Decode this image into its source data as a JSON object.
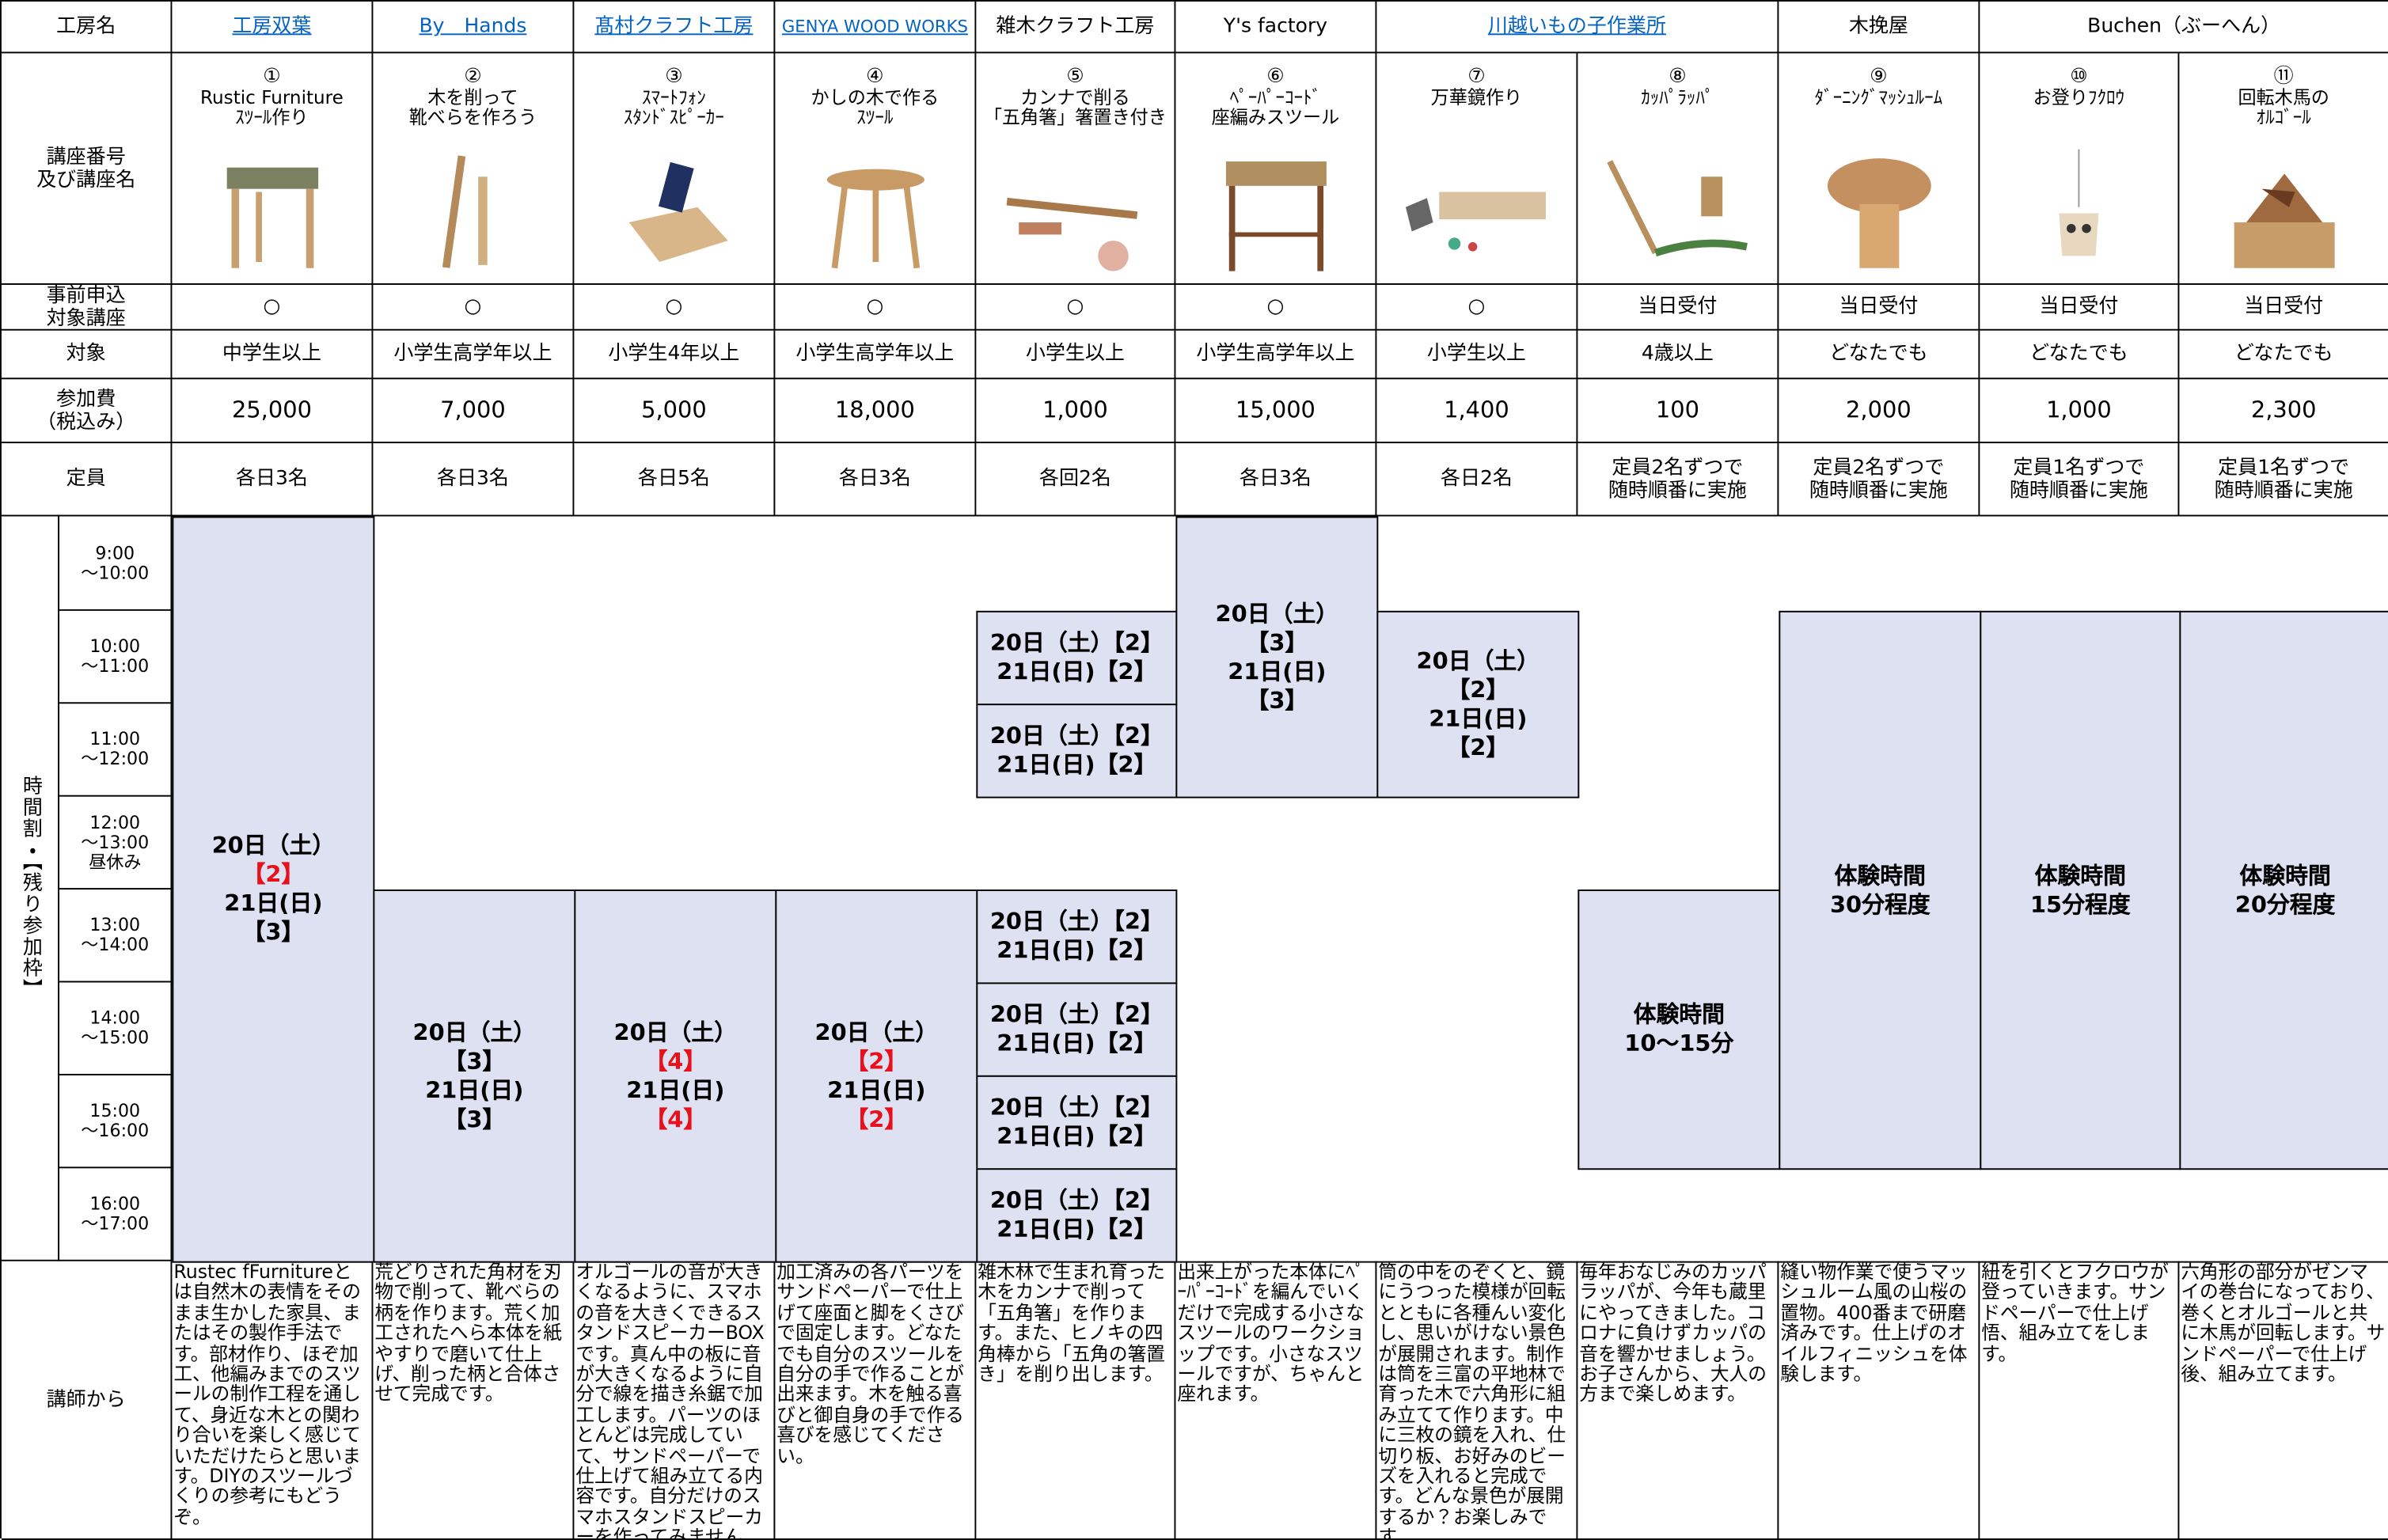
{
  "row_labels": {
    "studio": "工房名",
    "course": "講座番号\n及び講座名",
    "preregistration": "事前申込\n対象講座",
    "target": "対象",
    "fee": "参加費\n（税込み）",
    "capacity": "定員",
    "schedule": "時間割・【残り参加枠】",
    "message": "講師から"
  },
  "studios": [
    {
      "name": "工房双葉",
      "link": true,
      "courses": 1
    },
    {
      "name": "By　Hands",
      "link": true,
      "courses": 1
    },
    {
      "name": "髙村クラフト工房",
      "link": true,
      "courses": 1
    },
    {
      "name": "GENYA WOOD WORKS",
      "link": true,
      "courses": 1
    },
    {
      "name": "雑木クラフト工房",
      "link": false,
      "courses": 1
    },
    {
      "name": "Y's factory",
      "link": false,
      "courses": 1
    },
    {
      "name": "川越いもの子作業所",
      "link": true,
      "courses": 2
    },
    {
      "name": "木挽屋",
      "link": false,
      "courses": 1
    },
    {
      "name": "Buchen（ぶーへん）",
      "link": false,
      "courses": 2
    }
  ],
  "time_slots": [
    "9:00\n～10:00",
    "10:00\n～11:00",
    "11:00\n～12:00",
    "12:00\n～13:00\n昼休み",
    "13:00\n～14:00",
    "14:00\n～15:00",
    "15:00\n～16:00",
    "16:00\n～17:00"
  ],
  "courses": [
    {
      "number": "①",
      "name": "Rustic Furniture\nｽﾂｰﾙ作り",
      "preregistration": "○",
      "target": "中学生以上",
      "fee": "25,000",
      "capacity": "各日3名",
      "schedule": [
        [
          "20日（土）",
          {
            "text": "【2】",
            "color": "#e8101a"
          },
          "21日(日)",
          "【3】"
        ]
      ],
      "message": "Rustec fFurnitureとは自然木の表情をそのまま生かした家具、またはその製作手法です。部材作り、ほぞ加工、他編みまでのスツールの制作工程を通して、身近な木との関わり合いを楽しく感じていただけたらと思います。DIYのスツールづくりの参考にもどうぞ。"
    },
    {
      "number": "②",
      "name": "木を削って\n靴べらを作ろう",
      "preregistration": "○",
      "target": "小学生高学年以上",
      "fee": "7,000",
      "capacity": "各日3名",
      "schedule": [
        [
          "20日（土）",
          "【3】",
          "21日(日)",
          "【3】"
        ]
      ],
      "message": "荒どりされた角材を刃物で削って、靴べらの柄を作ります。荒く加工されたへら本体を紙やすりで磨いて仕上げ、削った柄と合体させて完成です。"
    },
    {
      "number": "③",
      "name": "ｽﾏｰﾄﾌｫﾝ\nｽﾀﾝﾄﾞｽﾋﾟｰｶｰ",
      "preregistration": "○",
      "target": "小学生4年以上",
      "fee": "5,000",
      "capacity": "各日5名",
      "schedule": [
        [
          "20日（土）",
          {
            "text": "【4】",
            "color": "#e8101a"
          },
          "21日(日)",
          {
            "text": "【4】",
            "color": "#e8101a"
          }
        ]
      ],
      "message": "オルゴールの音が大きくなるように、スマホの音を大きくできるスタンドスピーカーBOXです。真ん中の板に音が大きくなるように自分で線を描き糸鋸で加工します。パーツのほとんどは完成していて、サンドペーパーで仕上げて組み立てる内容です。自分だけのスマホスタンドスピーカーを作ってみませんか。"
    },
    {
      "number": "④",
      "name": "かしの木で作る\nｽﾂｰﾙ",
      "preregistration": "○",
      "target": "小学生高学年以上",
      "fee": "18,000",
      "capacity": "各日3名",
      "schedule": [
        [
          "20日（土）",
          {
            "text": "【2】",
            "color": "#e8101a"
          },
          "21日(日)",
          {
            "text": "【2】",
            "color": "#e8101a"
          }
        ]
      ],
      "message": "加工済みの各パーツをサンドペーパーで仕上げて座面と脚をくさびで固定します。どなたでも自分のスツールを自分の手で作ることが出来ます。木を触る喜びと御自身の手で作る喜びを感じてください。"
    },
    {
      "number": "⑤",
      "name": "カンナで削る\n「五角箸」箸置き付き",
      "preregistration": "○",
      "target": "小学生以上",
      "fee": "1,000",
      "capacity": "各回2名",
      "schedule": [
        [
          "20日（土）【2】",
          "21日(日)【2】"
        ],
        [
          "20日（土）【2】",
          "21日(日)【2】"
        ],
        [
          "20日（土）【2】",
          "21日(日)【2】"
        ],
        [
          "20日（土）【2】",
          "21日(日)【2】"
        ],
        [
          "20日（土）【2】",
          "21日(日)【2】"
        ],
        [
          "20日（土）【2】",
          "21日(日)【2】"
        ]
      ],
      "message": "雑木林で生まれ育った木をカンナで削って「五角箸」を作ります。また、ヒノキの四角棒から「五角の箸置き」を削り出します。"
    },
    {
      "number": "⑥",
      "name": "ﾍﾟｰﾊﾟｰｺｰﾄﾞ\n座編みスツール",
      "preregistration": "○",
      "target": "小学生高学年以上",
      "fee": "15,000",
      "capacity": "各日3名",
      "schedule": [
        [
          "20日（土）",
          "【3】",
          "21日(日)",
          "【3】"
        ]
      ],
      "message": "出来上がった本体にﾍﾟｰﾊﾟｰｺｰﾄﾞを編んでいくだけで完成する小さなスツールのワークショップです。小さなスツールですが、ちゃんと座れます。"
    },
    {
      "number": "⑦",
      "name": "万華鏡作り",
      "preregistration": "○",
      "target": "小学生以上",
      "fee": "1,400",
      "capacity": "各日2名",
      "schedule": [
        [
          "20日（土）",
          "【2】",
          "21日(日)",
          "【2】"
        ]
      ],
      "message": "筒の中をのぞくと、鏡にうつった模様が回転とともに各種んい変化し、思いがけない景色が展開されます。制作は筒を三富の平地林で育った木で六角形に組み立てて作ります。中に三枚の鏡を入れ、仕切り板、お好みのビーズを入れると完成です。どんな景色が展開するか？お楽しみです。"
    },
    {
      "number": "⑧",
      "name": "ｶｯﾊﾟﾗｯﾊﾟ",
      "preregistration": "当日受付",
      "target": "4歳以上",
      "fee": "100",
      "capacity": "定員2名ずつで\n随時順番に実施",
      "schedule": [
        [
          "体験時間",
          "10～15分"
        ]
      ],
      "message": "毎年おなじみのカッパラッパが、今年も蔵里にやってきました。コロナに負けずカッパの音を響かせましょう。お子さんから、大人の方まで楽しめます。"
    },
    {
      "number": "⑨",
      "name": "ﾀﾞｰﾆﾝｸﾞﾏｯｼｭﾙｰﾑ",
      "preregistration": "当日受付",
      "target": "どなたでも",
      "fee": "2,000",
      "capacity": "定員2名ずつで\n随時順番に実施",
      "schedule": [
        [
          "体験時間",
          "30分程度"
        ]
      ],
      "message": "縫い物作業で使うマッシュルーム風の山桜の置物。400番まで研磨済みです。仕上げのオイルフィニッシュを体験します。"
    },
    {
      "number": "⑩",
      "name": "お登りﾌｸﾛｳ",
      "preregistration": "当日受付",
      "target": "どなたでも",
      "fee": "1,000",
      "capacity": "定員1名ずつで\n随時順番に実施",
      "schedule": [
        [
          "体験時間",
          "15分程度"
        ]
      ],
      "message": "紐を引くとフクロウが登っていきます。サンドペーパーで仕上げ悟、組み立てをします。"
    },
    {
      "number": "⑪",
      "name": "回転木馬の\nｵﾙｺﾞｰﾙ",
      "preregistration": "当日受付",
      "target": "どなたでも",
      "fee": "2,300",
      "capacity": "定員1名ずつで\n随時順番に実施",
      "schedule": [
        [
          "体験時間",
          "20分程度"
        ]
      ],
      "message": "六角形の部分がゼンマイの巻台になっており、巻くとオルゴールと共に木馬が回転します。サンドペーパーで仕上げ後、組み立てます。"
    }
  ]
}
